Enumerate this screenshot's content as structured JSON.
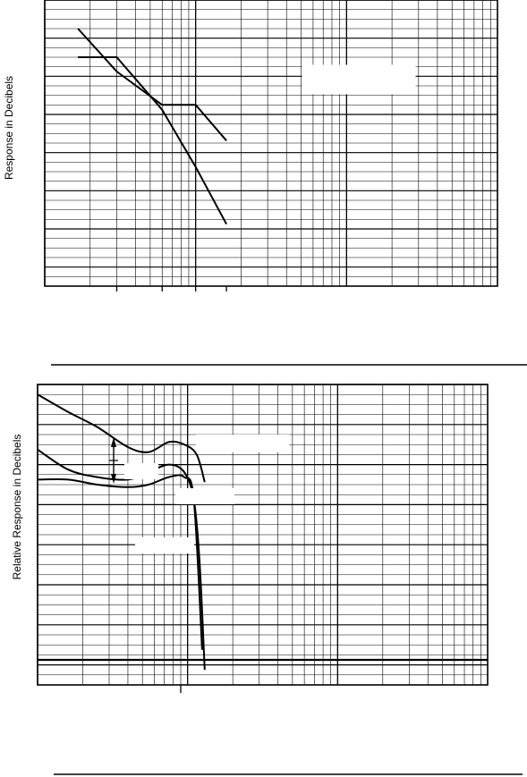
{
  "chart_data": [
    {
      "type": "line",
      "title": "",
      "xlabel": "",
      "ylabel": "Response in Decibels",
      "x_scale": "log",
      "x_decades": 3,
      "series": [
        {
          "name": "",
          "x": [
            1.66,
            3.0,
            6.0,
            10.0,
            16.0
          ],
          "y": [
            24,
            15,
            8,
            8,
            0.5
          ]
        },
        {
          "name": "",
          "x": [
            1.66,
            3.0,
            6.0,
            10.0,
            16.0
          ],
          "y": [
            18,
            18,
            7,
            -5,
            -17
          ]
        }
      ],
      "reference_ticks": [
        3.0,
        6.0,
        10.0,
        16.0
      ],
      "ylim": [
        -30,
        30
      ],
      "grid": true,
      "legend": "none"
    },
    {
      "type": "line",
      "title": "",
      "xlabel": "",
      "ylabel": "Relative Response in Decibels",
      "x_scale": "log",
      "x_decades": 3,
      "series": [
        {
          "name": "",
          "x": [
            1.0,
            1.6,
            2.5,
            4.0,
            5.5,
            7.5,
            9.5,
            11.5,
            13.0
          ],
          "y": [
            18,
            14.5,
            11.5,
            7.5,
            6.5,
            8.5,
            8,
            6,
            0.5
          ]
        },
        {
          "name": "",
          "x": [
            1.0,
            1.6,
            2.5,
            4.0,
            5.5,
            7.5,
            9.5,
            11.0,
            12.0,
            13.0
          ],
          "y": [
            7,
            3,
            1.5,
            1,
            2.5,
            4,
            2.5,
            -3,
            -15,
            -37
          ]
        },
        {
          "name": "",
          "x": [
            1.0,
            1.6,
            2.5,
            4.0,
            5.5,
            7.5,
            9.5,
            11.0,
            12.5
          ],
          "y": [
            1,
            1,
            0,
            -0.5,
            0,
            1.5,
            1.5,
            -3,
            -33
          ]
        }
      ],
      "reference_ticks": [
        9.0
      ],
      "ylim": [
        -40,
        20
      ],
      "grid": true,
      "legend": "none"
    }
  ]
}
